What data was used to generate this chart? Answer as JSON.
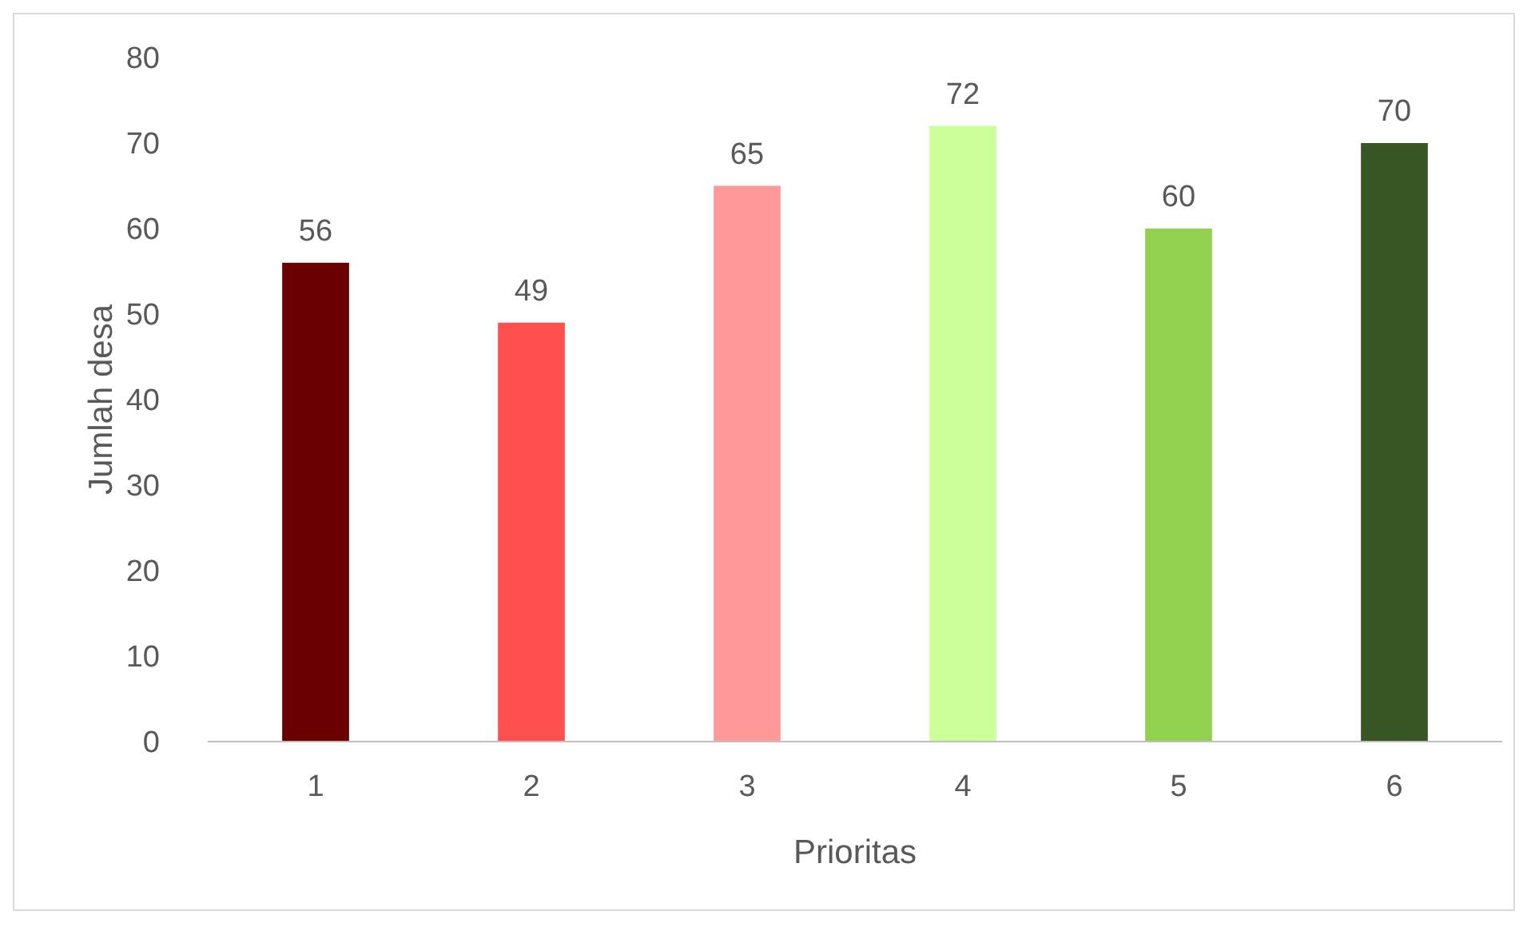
{
  "chart_data": {
    "type": "bar",
    "xlabel": "Prioritas",
    "ylabel": "Jumlah desa",
    "categories": [
      "1",
      "2",
      "3",
      "4",
      "5",
      "6"
    ],
    "values": [
      56,
      49,
      65,
      72,
      60,
      70
    ],
    "colors": [
      "#6b0000",
      "#ff5050",
      "#ff9999",
      "#ccff99",
      "#92d050",
      "#375623"
    ],
    "ylim": [
      0,
      80
    ],
    "yticks": [
      0,
      10,
      20,
      30,
      40,
      50,
      60,
      70,
      80
    ],
    "grid": false,
    "data_labels": true
  }
}
